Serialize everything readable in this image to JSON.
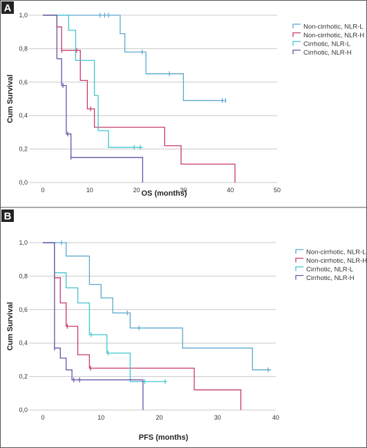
{
  "chart_data": [
    {
      "type": "line",
      "panel_label": "A",
      "xlabel": "OS (months)",
      "ylabel": "Cum Survival",
      "xlim": [
        0,
        50
      ],
      "ylim": [
        0,
        1
      ],
      "x_ticks": [
        "0",
        "10",
        "20",
        "30",
        "40",
        "50"
      ],
      "y_ticks": [
        "0,0",
        "0,2",
        "0,4",
        "0,6",
        "0,8",
        "1,0"
      ],
      "grid": true,
      "legend_position": "top-right",
      "series": [
        {
          "name": "Non-cirrhotic, NLR-L",
          "color": "#5aa7cf",
          "steps": [
            [
              0,
              1.0
            ],
            [
              16.5,
              0.89
            ],
            [
              17.5,
              0.78
            ],
            [
              22,
              0.65
            ],
            [
              30,
              0.49
            ],
            [
              39,
              0.49
            ]
          ],
          "censored": [
            [
              12.2,
              1.0
            ],
            [
              13.2,
              1.0
            ],
            [
              14,
              1.0
            ],
            [
              21.2,
              0.78
            ],
            [
              27,
              0.65
            ],
            [
              38.3,
              0.49
            ],
            [
              39,
              0.49
            ]
          ]
        },
        {
          "name": "Non-cirrhotic, NLR-H",
          "color": "#c8386a",
          "steps": [
            [
              0,
              1.0
            ],
            [
              3,
              0.93
            ],
            [
              4,
              0.79
            ],
            [
              7.5,
              0.79
            ],
            [
              8,
              0.61
            ],
            [
              9.5,
              0.44
            ],
            [
              11,
              0.33
            ],
            [
              26,
              0.22
            ],
            [
              29.5,
              0.11
            ],
            [
              41,
              0.0
            ]
          ],
          "censored": [
            [
              4,
              0.79
            ],
            [
              7.2,
              0.79
            ],
            [
              10.2,
              0.44
            ]
          ]
        },
        {
          "name": "Cirrhotic, NLR-L",
          "color": "#3fc5cf",
          "steps": [
            [
              0,
              1.0
            ],
            [
              5.5,
              0.91
            ],
            [
              7,
              0.73
            ],
            [
              11,
              0.52
            ],
            [
              11.8,
              0.31
            ],
            [
              14,
              0.21
            ],
            [
              21.3,
              0.21
            ]
          ],
          "censored": [
            [
              19.5,
              0.21
            ],
            [
              20.8,
              0.21
            ]
          ]
        },
        {
          "name": "Cirrhotic, NLR-H",
          "color": "#6a52a7",
          "steps": [
            [
              0,
              1.0
            ],
            [
              3,
              0.74
            ],
            [
              4,
              0.58
            ],
            [
              5,
              0.29
            ],
            [
              6,
              0.15
            ],
            [
              21.3,
              0.0
            ]
          ],
          "censored": [
            [
              4.3,
              0.58
            ],
            [
              5.3,
              0.29
            ],
            [
              6,
              0.15
            ]
          ]
        }
      ]
    },
    {
      "type": "line",
      "panel_label": "B",
      "xlabel": "PFS (months)",
      "ylabel": "Cum Survival",
      "xlim": [
        0,
        40
      ],
      "ylim": [
        0,
        1
      ],
      "x_ticks": [
        "0",
        "10",
        "20",
        "30",
        "40"
      ],
      "y_ticks": [
        "0,0",
        "0,2",
        "0,4",
        "0,6",
        "0,8",
        "1,0"
      ],
      "grid": true,
      "legend_position": "top-right",
      "series": [
        {
          "name": "Non-cirrhotic, NLR-L",
          "color": "#5aa7cf",
          "steps": [
            [
              0,
              1.0
            ],
            [
              4,
              0.92
            ],
            [
              8,
              0.75
            ],
            [
              10,
              0.67
            ],
            [
              12,
              0.58
            ],
            [
              15,
              0.49
            ],
            [
              24,
              0.37
            ],
            [
              36,
              0.24
            ],
            [
              39.2,
              0.24
            ]
          ],
          "censored": [
            [
              3.2,
              1.0
            ],
            [
              14.5,
              0.58
            ],
            [
              16.5,
              0.49
            ],
            [
              38.7,
              0.24
            ]
          ]
        },
        {
          "name": "Non-cirrhotic, NLR-H",
          "color": "#c8386a",
          "steps": [
            [
              0,
              1.0
            ],
            [
              2,
              0.79
            ],
            [
              3,
              0.64
            ],
            [
              4,
              0.5
            ],
            [
              6,
              0.33
            ],
            [
              8,
              0.25
            ],
            [
              26,
              0.12
            ],
            [
              34,
              0.0
            ]
          ],
          "censored": [
            [
              4.2,
              0.5
            ],
            [
              8.2,
              0.25
            ]
          ]
        },
        {
          "name": "Cirrhotic, NLR-L",
          "color": "#3fc5cf",
          "steps": [
            [
              0,
              1.0
            ],
            [
              2,
              0.82
            ],
            [
              4,
              0.73
            ],
            [
              6,
              0.64
            ],
            [
              8,
              0.45
            ],
            [
              11,
              0.34
            ],
            [
              15,
              0.17
            ],
            [
              21.3,
              0.17
            ]
          ],
          "censored": [
            [
              8.3,
              0.45
            ],
            [
              11.2,
              0.34
            ],
            [
              17.5,
              0.17
            ],
            [
              21,
              0.17
            ]
          ]
        },
        {
          "name": "Cirrhotic, NLR-H",
          "color": "#6a52a7",
          "steps": [
            [
              0,
              1.0
            ],
            [
              2,
              0.37
            ],
            [
              3,
              0.31
            ],
            [
              4,
              0.24
            ],
            [
              5,
              0.18
            ],
            [
              17.2,
              0.0
            ]
          ],
          "censored": [
            [
              2,
              0.37
            ],
            [
              5.3,
              0.18
            ],
            [
              6.3,
              0.18
            ]
          ]
        }
      ]
    }
  ]
}
